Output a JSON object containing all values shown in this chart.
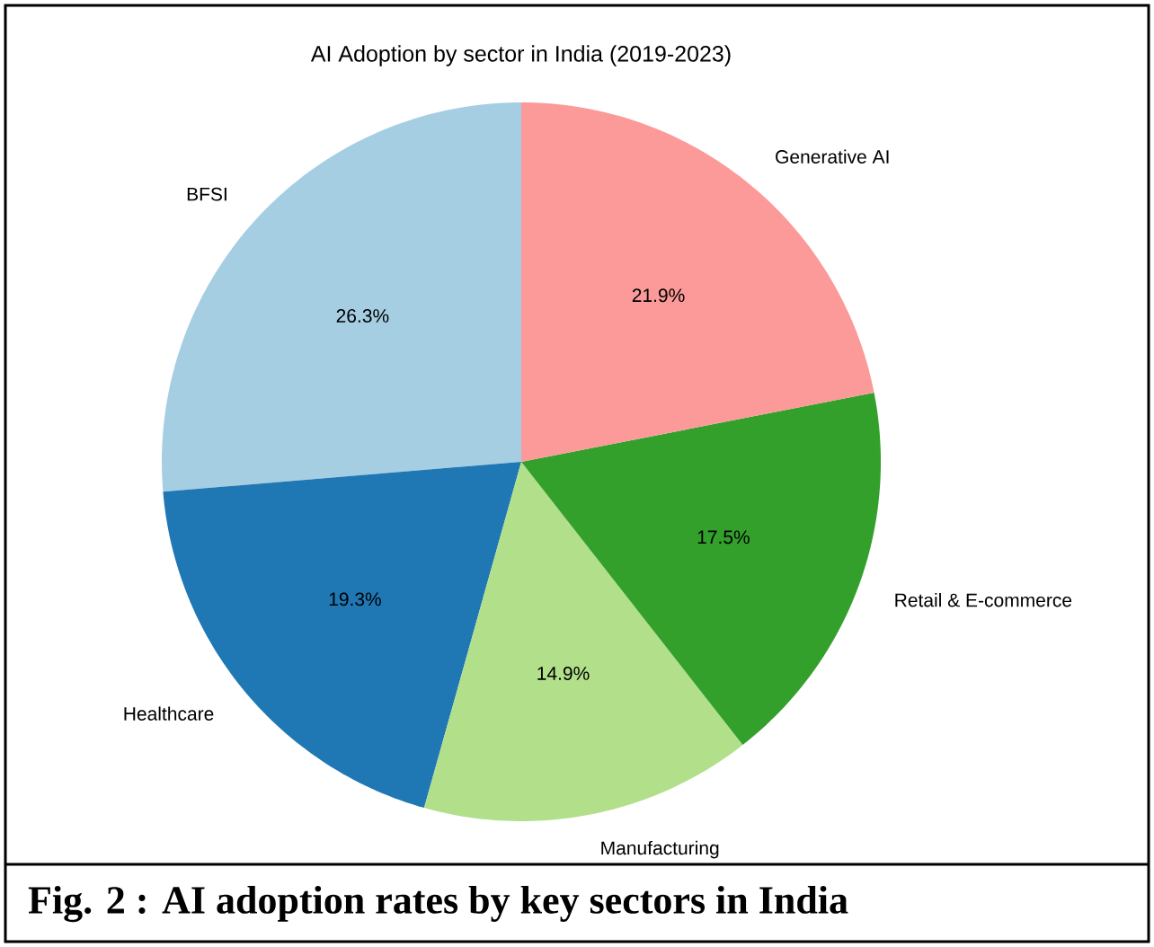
{
  "chart_data": {
    "type": "pie",
    "title": "AI Adoption by sector in India (2019-2023)",
    "categories": [
      "BFSI",
      "Healthcare",
      "Manufacturing",
      "Retail & E-commerce",
      "Generative AI"
    ],
    "values": [
      26.3,
      19.3,
      14.9,
      17.5,
      21.9
    ],
    "value_labels": [
      "26.3%",
      "19.3%",
      "14.9%",
      "17.5%",
      "21.9%"
    ],
    "colors": [
      "#a6cee3",
      "#1f78b4",
      "#b2df8a",
      "#33a02c",
      "#fb9a99"
    ],
    "annotations": [
      "**Fig. 2 :   AI adoption rates by key sectors in India**"
    ]
  }
}
